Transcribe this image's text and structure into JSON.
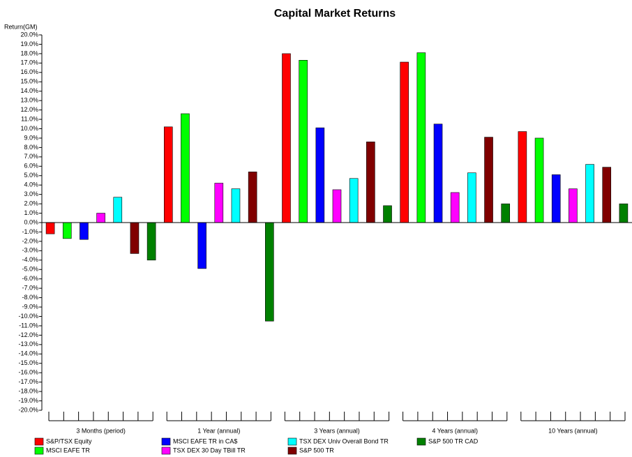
{
  "chart_data": {
    "type": "bar",
    "title": "Capital Market Returns",
    "y_label": "Return(GM)",
    "categories": [
      "3 Months (period)",
      "1 Year (annual)",
      "3 Years (annual)",
      "4 Years (annual)",
      "10 Years (annual)"
    ],
    "series": [
      {
        "name": "S&P/TSX Equity",
        "color": "#ff0000",
        "values": [
          -1.2,
          10.2,
          18.0,
          17.1,
          9.7
        ]
      },
      {
        "name": "MSCI EAFE TR",
        "color": "#00ff00",
        "values": [
          -1.7,
          11.6,
          17.3,
          18.1,
          9.0
        ]
      },
      {
        "name": "MSCI EAFE TR in CA$",
        "color": "#0000ff",
        "values": [
          -1.8,
          -4.9,
          10.1,
          10.5,
          5.1
        ]
      },
      {
        "name": "TSX DEX 30 Day TBill TR",
        "color": "#ff00ff",
        "values": [
          1.0,
          4.2,
          3.5,
          3.2,
          3.6
        ]
      },
      {
        "name": "TSX DEX Univ Overall Bond TR",
        "color": "#00ffff",
        "values": [
          2.7,
          3.6,
          4.7,
          5.3,
          6.2
        ]
      },
      {
        "name": "S&P 500 TR",
        "color": "#800000",
        "values": [
          -3.3,
          5.4,
          8.6,
          9.1,
          5.9
        ]
      },
      {
        "name": "S&P 500 TR CAD",
        "color": "#008000",
        "values": [
          -4.0,
          -10.5,
          1.8,
          2.0,
          2.0
        ]
      }
    ],
    "ylim": [
      -20,
      20
    ],
    "yticks": [
      {
        "value": -20,
        "label": "-20.0%"
      },
      {
        "value": -19,
        "label": "-19.0%"
      },
      {
        "value": -18,
        "label": "-18.0%"
      },
      {
        "value": -17,
        "label": "-17.0%"
      },
      {
        "value": -16,
        "label": "-16.0%"
      },
      {
        "value": -15,
        "label": "-15.0%"
      },
      {
        "value": -14,
        "label": "-14.0%"
      },
      {
        "value": -13,
        "label": "-13.0%"
      },
      {
        "value": -12,
        "label": "-12.0%"
      },
      {
        "value": -11,
        "label": "-11.0%"
      },
      {
        "value": -10,
        "label": "-10.0%"
      },
      {
        "value": -9,
        "label": "-9.0%"
      },
      {
        "value": -8,
        "label": "-8.0%"
      },
      {
        "value": -7,
        "label": "-7.0%"
      },
      {
        "value": -6,
        "label": "-6.0%"
      },
      {
        "value": -5,
        "label": "-5.0%"
      },
      {
        "value": -4,
        "label": "-4.0%"
      },
      {
        "value": -3,
        "label": "-3.0%"
      },
      {
        "value": -2,
        "label": "-2.0%"
      },
      {
        "value": -1,
        "label": "-1.0%"
      },
      {
        "value": 0,
        "label": "0.0%"
      },
      {
        "value": 1,
        "label": "1.0%"
      },
      {
        "value": 2,
        "label": "2.0%"
      },
      {
        "value": 3,
        "label": "3.0%"
      },
      {
        "value": 4,
        "label": "4.0%"
      },
      {
        "value": 5,
        "label": "5.0%"
      },
      {
        "value": 6,
        "label": "6.0%"
      },
      {
        "value": 7,
        "label": "7.0%"
      },
      {
        "value": 8,
        "label": "8.0%"
      },
      {
        "value": 9,
        "label": "9.0%"
      },
      {
        "value": 10,
        "label": "10.0%"
      },
      {
        "value": 11,
        "label": "11.0%"
      },
      {
        "value": 12,
        "label": "12.0%"
      },
      {
        "value": 13,
        "label": "13.0%"
      },
      {
        "value": 14,
        "label": "14.0%"
      },
      {
        "value": 15,
        "label": "15.0%"
      },
      {
        "value": 16,
        "label": "16.0%"
      },
      {
        "value": 17,
        "label": "17.0%"
      },
      {
        "value": 18,
        "label": "18.0%"
      },
      {
        "value": 19,
        "label": "19.0%"
      },
      {
        "value": 20,
        "label": "20.0%"
      }
    ]
  }
}
